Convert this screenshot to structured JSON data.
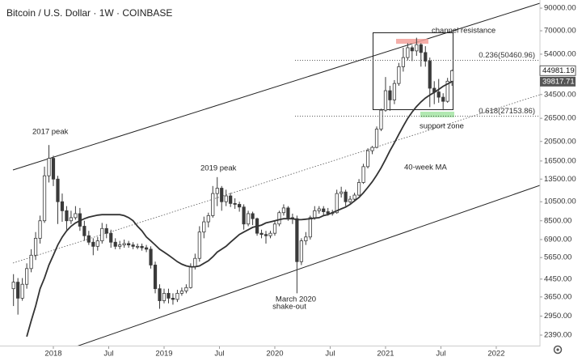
{
  "chart_data": {
    "type": "candlestick",
    "title": "Bitcoin / U.S. Dollar · 1W · COINBASE",
    "color": "#3a3a3a",
    "log_scale": true,
    "xlim": [
      2017.635,
      2022.38
    ],
    "ylim": [
      2070,
      98500
    ],
    "xticks": [
      2018,
      {
        "value": 2018.5,
        "label": "Jul"
      },
      2019,
      {
        "value": 2019.5,
        "label": "Jul"
      },
      2020,
      {
        "value": 2020.5,
        "label": "Jul"
      },
      2021,
      {
        "value": 2021.5,
        "label": "Jul"
      },
      2022
    ],
    "yticks": [
      {
        "value": 90000,
        "label": "90000.00"
      },
      {
        "value": 70000,
        "label": "70000.00"
      },
      {
        "value": 54000,
        "label": "54000.00"
      },
      {
        "value": 34500,
        "label": "34500.00"
      },
      {
        "value": 26500,
        "label": "26500.00"
      },
      {
        "value": 20500,
        "label": "20500.00"
      },
      {
        "value": 16500,
        "label": "16500.00"
      },
      {
        "value": 13500,
        "label": "13500.00"
      },
      {
        "value": 10500,
        "label": "10500.00"
      },
      {
        "value": 8500,
        "label": "8500.00"
      },
      {
        "value": 6900,
        "label": "6900.00"
      },
      {
        "value": 5650,
        "label": "5650.00"
      },
      {
        "value": 4450,
        "label": "4450.00"
      },
      {
        "value": 3650,
        "label": "3650.00"
      },
      {
        "value": 2950,
        "label": "2950.00"
      },
      {
        "value": 2390,
        "label": "2390.00"
      }
    ],
    "x": [
      2017.64,
      2017.68,
      2017.72,
      2017.76,
      2017.8,
      2017.84,
      2017.88,
      2017.92,
      2017.96,
      2018,
      2018.04,
      2018.08,
      2018.12,
      2018.16,
      2018.2,
      2018.24,
      2018.28,
      2018.32,
      2018.36,
      2018.4,
      2018.44,
      2018.48,
      2018.52,
      2018.56,
      2018.6,
      2018.64,
      2018.68,
      2018.72,
      2018.76,
      2018.8,
      2018.84,
      2018.88,
      2018.92,
      2018.96,
      2019,
      2019.04,
      2019.08,
      2019.12,
      2019.16,
      2019.2,
      2019.24,
      2019.28,
      2019.32,
      2019.36,
      2019.4,
      2019.44,
      2019.48,
      2019.52,
      2019.56,
      2019.6,
      2019.64,
      2019.68,
      2019.72,
      2019.76,
      2019.8,
      2019.84,
      2019.88,
      2019.92,
      2019.96,
      2020,
      2020.04,
      2020.08,
      2020.12,
      2020.16,
      2020.2,
      2020.24,
      2020.28,
      2020.32,
      2020.36,
      2020.4,
      2020.44,
      2020.48,
      2020.52,
      2020.56,
      2020.6,
      2020.64,
      2020.68,
      2020.72,
      2020.76,
      2020.8,
      2020.84,
      2020.88,
      2020.92,
      2020.96,
      2021,
      2021.04,
      2021.08,
      2021.12,
      2021.16,
      2021.2,
      2021.24,
      2021.28,
      2021.32,
      2021.36,
      2021.4,
      2021.44,
      2021.48,
      2021.52,
      2021.56,
      2021.6
    ],
    "open": [
      4000,
      4300,
      3600,
      4200,
      5000,
      5800,
      7000,
      8500,
      14000,
      17000,
      13500,
      10500,
      9500,
      8500,
      8800,
      9200,
      8000,
      7200,
      6700,
      6400,
      6800,
      7800,
      7400,
      6700,
      6400,
      6500,
      6600,
      6500,
      6400,
      6400,
      6300,
      6200,
      5200,
      4000,
      3500,
      3800,
      3600,
      3550,
      3800,
      3900,
      4050,
      5100,
      5600,
      7500,
      8400,
      9000,
      11500,
      12200,
      10500,
      11200,
      10300,
      10200,
      9900,
      8200,
      9200,
      8700,
      7400,
      7300,
      7200,
      7400,
      8200,
      9300,
      9800,
      8800,
      8700,
      5400,
      6800,
      7100,
      8800,
      9500,
      9700,
      9400,
      9200,
      9300,
      11500,
      11700,
      10500,
      10800,
      11300,
      13000,
      15500,
      18500,
      19200,
      23500,
      29000,
      36000,
      32500,
      39000,
      47000,
      52000,
      58000,
      56000,
      60000,
      55000,
      50000,
      37000,
      35500,
      33500,
      32000,
      40000
    ],
    "high": [
      4700,
      4500,
      4500,
      5300,
      6200,
      7500,
      9000,
      15500,
      19700,
      17500,
      14000,
      11500,
      10000,
      9500,
      10000,
      9800,
      8500,
      7600,
      7000,
      7100,
      8300,
      8200,
      7700,
      7000,
      6800,
      6900,
      6800,
      6700,
      6600,
      6600,
      6500,
      6400,
      5400,
      4200,
      4000,
      4000,
      3800,
      3950,
      4050,
      4200,
      5300,
      5900,
      8000,
      8900,
      9300,
      12500,
      13800,
      12500,
      12000,
      11600,
      10900,
      10500,
      10200,
      9500,
      9400,
      8800,
      7700,
      7600,
      7600,
      8500,
      9500,
      10200,
      10000,
      9200,
      9000,
      7000,
      7500,
      9000,
      10000,
      10000,
      10000,
      9800,
      9600,
      12000,
      12400,
      12000,
      11200,
      11600,
      13500,
      16000,
      19000,
      19500,
      24200,
      29500,
      41900,
      38000,
      40500,
      49000,
      58000,
      61000,
      59500,
      64800,
      61000,
      59000,
      52000,
      40000,
      41000,
      35000,
      41500,
      45500
    ],
    "low": [
      3300,
      3000,
      3500,
      4000,
      4800,
      5500,
      6600,
      8300,
      13000,
      12500,
      8200,
      8400,
      7700,
      8200,
      8600,
      7600,
      6800,
      6500,
      5800,
      6100,
      6600,
      7000,
      6300,
      6200,
      6200,
      6300,
      6300,
      6200,
      6200,
      6100,
      6000,
      5000,
      3800,
      3200,
      3400,
      3400,
      3350,
      3450,
      3700,
      3800,
      4000,
      4950,
      5400,
      7000,
      7900,
      8800,
      10000,
      9500,
      10000,
      9900,
      9700,
      9400,
      7700,
      8000,
      8100,
      7200,
      7000,
      6600,
      7000,
      7200,
      8000,
      9000,
      8500,
      8200,
      3800,
      5200,
      6500,
      6900,
      8600,
      9200,
      9000,
      9000,
      9000,
      9200,
      11000,
      10000,
      10300,
      10500,
      11200,
      12800,
      15200,
      17800,
      19000,
      23000,
      28500,
      28800,
      31000,
      38000,
      44500,
      50500,
      50000,
      53000,
      47000,
      47000,
      30000,
      31000,
      31500,
      29000,
      31500,
      38000
    ],
    "close": [
      4300,
      3600,
      4200,
      5000,
      5800,
      7000,
      8500,
      14000,
      17000,
      13500,
      10500,
      9500,
      8500,
      8800,
      9200,
      8000,
      7200,
      6700,
      6400,
      6800,
      7800,
      7400,
      6700,
      6400,
      6500,
      6600,
      6500,
      6400,
      6400,
      6300,
      6200,
      5200,
      4000,
      3500,
      3800,
      3600,
      3550,
      3800,
      3900,
      4050,
      5100,
      5600,
      7500,
      8400,
      9000,
      11500,
      12200,
      10500,
      11200,
      10300,
      10200,
      9900,
      8200,
      9200,
      8700,
      7400,
      7300,
      7200,
      7400,
      8200,
      9300,
      9800,
      8800,
      8700,
      5400,
      6800,
      7100,
      8800,
      9500,
      9700,
      9400,
      9200,
      9300,
      11500,
      11700,
      10500,
      10800,
      11300,
      13000,
      15500,
      18500,
      19200,
      23500,
      29000,
      36000,
      32500,
      39000,
      47000,
      52000,
      58000,
      56000,
      60000,
      55000,
      50000,
      37000,
      35500,
      33500,
      32000,
      40000,
      44981.19
    ],
    "ma": {
      "color": "#333333",
      "values": [
        null,
        null,
        null,
        2350,
        2800,
        3300,
        4000,
        4500,
        5200,
        5800,
        6500,
        7100,
        7600,
        8000,
        8300,
        8500,
        8700,
        8850,
        8950,
        9050,
        9100,
        9100,
        9100,
        9100,
        9100,
        9000,
        8800,
        8500,
        8000,
        7600,
        7100,
        6800,
        6500,
        6200,
        6000,
        5800,
        5600,
        5400,
        5250,
        5150,
        5100,
        5100,
        5150,
        5300,
        5450,
        5700,
        6000,
        6200,
        6400,
        6700,
        7000,
        7300,
        7500,
        7700,
        7900,
        8000,
        8100,
        8300,
        8400,
        8500,
        8600,
        8700,
        8700,
        8700,
        8600,
        8600,
        8650,
        8700,
        8750,
        8800,
        9000,
        9100,
        9300,
        9500,
        9700,
        9900,
        10200,
        10600,
        11000,
        11600,
        12300,
        13100,
        14100,
        15300,
        16800,
        18500,
        20200,
        22200,
        24300,
        26500,
        28400,
        30200,
        31800,
        33200,
        34300,
        35300,
        36500,
        37800,
        38800,
        39817.71
      ]
    },
    "levels": [
      {
        "value": 50460.96,
        "label": "0.236(50460.96)"
      },
      {
        "value": 27153.86,
        "label": "0.618(27153.86)"
      }
    ],
    "annotations": [
      "2017 peak",
      "2019 peak",
      "March 2020",
      "shake-out",
      "40-week MA",
      "channel resistance",
      "support zone"
    ]
  }
}
